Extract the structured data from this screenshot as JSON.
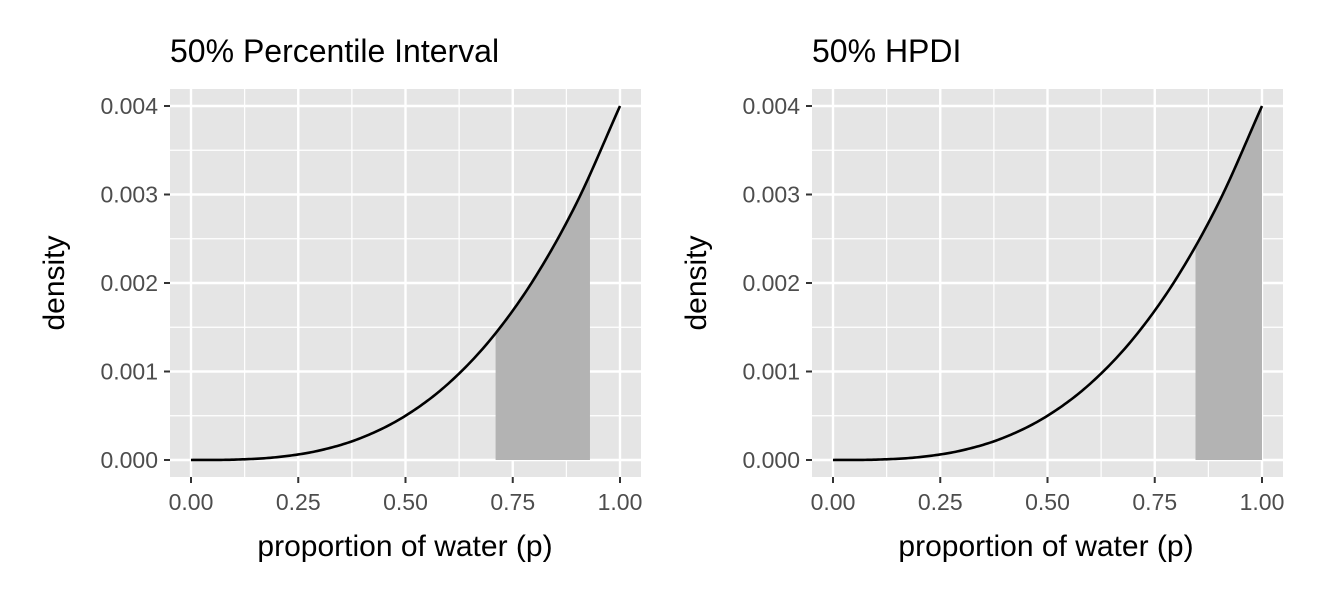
{
  "chart_data": [
    {
      "type": "area",
      "title": "50% Percentile Interval",
      "xlabel": "proportion of water (p)",
      "ylabel": "density",
      "xlim": [
        0,
        1
      ],
      "ylim": [
        0,
        0.004
      ],
      "x_ticks": [
        "0.00",
        "0.25",
        "0.50",
        "0.75",
        "1.00"
      ],
      "y_ticks": [
        "0.000",
        "0.001",
        "0.002",
        "0.003",
        "0.004"
      ],
      "grid": true,
      "series": [
        {
          "x": [
            0.0,
            0.1,
            0.2,
            0.3,
            0.4,
            0.5,
            0.6,
            0.7,
            0.8,
            0.9,
            1.0
          ],
          "y": [
            0.0,
            4e-06,
            3.2e-05,
            0.000108,
            0.000256,
            0.0005,
            0.000864,
            0.001372,
            0.002048,
            0.002916,
            0.004
          ]
        }
      ],
      "shaded_interval": [
        0.71,
        0.93
      ],
      "colors": {
        "panel": "#e5e5e5",
        "grid": "#ffffff",
        "line": "#000000",
        "shade": "#b3b3b3"
      }
    },
    {
      "type": "area",
      "title": "50% HPDI",
      "xlabel": "proportion of water (p)",
      "ylabel": "density",
      "xlim": [
        0,
        1
      ],
      "ylim": [
        0,
        0.004
      ],
      "x_ticks": [
        "0.00",
        "0.25",
        "0.50",
        "0.75",
        "1.00"
      ],
      "y_ticks": [
        "0.000",
        "0.001",
        "0.002",
        "0.003",
        "0.004"
      ],
      "grid": true,
      "series": [
        {
          "x": [
            0.0,
            0.1,
            0.2,
            0.3,
            0.4,
            0.5,
            0.6,
            0.7,
            0.8,
            0.9,
            1.0
          ],
          "y": [
            0.0,
            4e-06,
            3.2e-05,
            0.000108,
            0.000256,
            0.0005,
            0.000864,
            0.001372,
            0.002048,
            0.002916,
            0.004
          ]
        }
      ],
      "shaded_interval": [
        0.845,
        1.0
      ],
      "colors": {
        "panel": "#e5e5e5",
        "grid": "#ffffff",
        "line": "#000000",
        "shade": "#b3b3b3"
      }
    }
  ]
}
